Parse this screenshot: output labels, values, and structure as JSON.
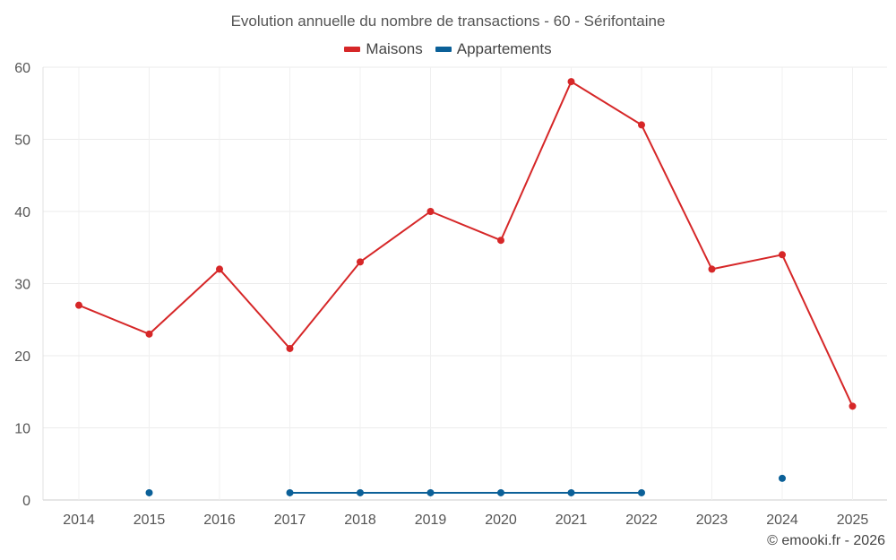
{
  "chart_data": {
    "type": "line",
    "title": "Evolution annuelle du nombre de transactions - 60 - Sérifontaine",
    "categories": [
      "2014",
      "2015",
      "2016",
      "2017",
      "2018",
      "2019",
      "2020",
      "2021",
      "2022",
      "2023",
      "2024",
      "2025"
    ],
    "series": [
      {
        "name": "Maisons",
        "color": "#d62728",
        "values": [
          27,
          23,
          32,
          21,
          33,
          40,
          36,
          58,
          52,
          32,
          34,
          13
        ]
      },
      {
        "name": "Appartements",
        "color": "#0b6098",
        "values": [
          null,
          1,
          null,
          1,
          1,
          1,
          1,
          1,
          1,
          null,
          3,
          null
        ]
      }
    ],
    "ylim": [
      0,
      60
    ],
    "yticks": [
      0,
      10,
      20,
      30,
      40,
      50,
      60
    ],
    "grid": true,
    "legend_position": "top-center"
  },
  "credit": "© emooki.fr - 2026"
}
